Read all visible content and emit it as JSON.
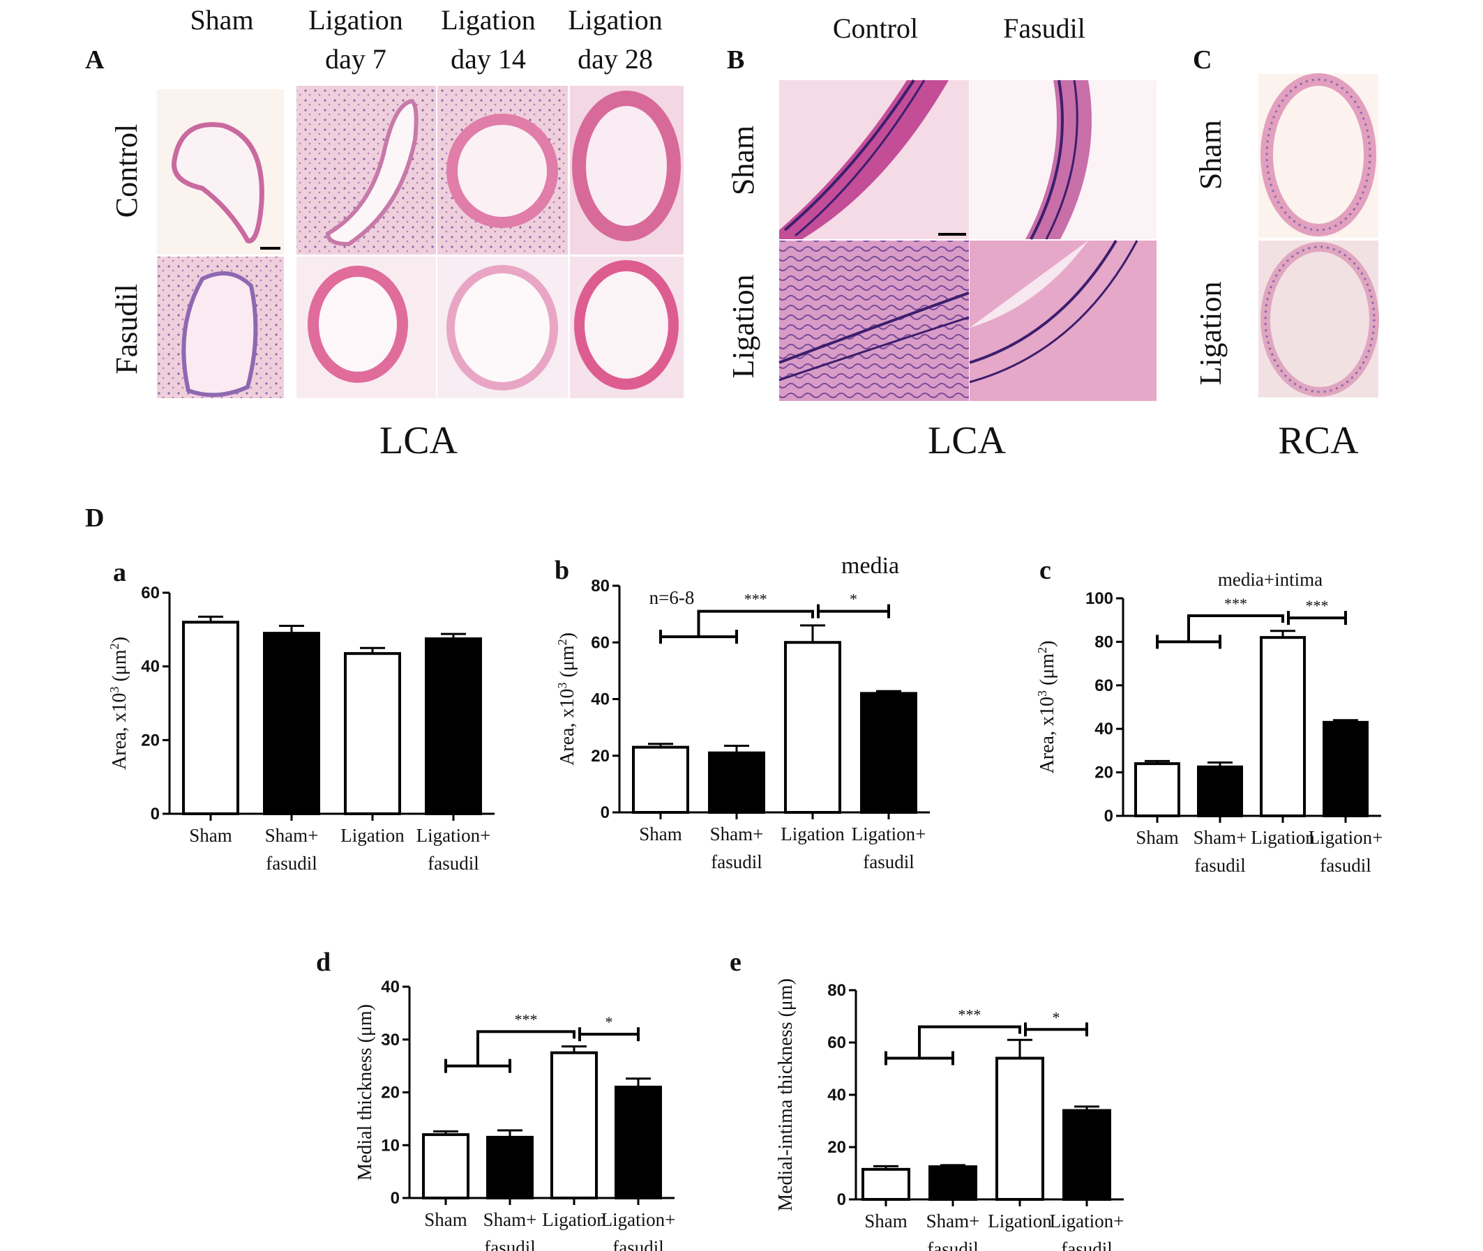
{
  "panels": {
    "A": {
      "letter": "A",
      "columns": [
        {
          "line1": "Sham",
          "line2": ""
        },
        {
          "line1": "Ligation",
          "line2": "day 7"
        },
        {
          "line1": "Ligation",
          "line2": "day 14"
        },
        {
          "line1": "Ligation",
          "line2": "day 28"
        }
      ],
      "rows": [
        "Control",
        "Fasudil"
      ],
      "vessel": "LCA"
    },
    "B": {
      "letter": "B",
      "columns": [
        "Control",
        "Fasudil"
      ],
      "rows": [
        "Sham",
        "Ligation"
      ],
      "vessel": "LCA"
    },
    "C": {
      "letter": "C",
      "rows": [
        "Sham",
        "Ligation"
      ],
      "vessel": "RCA"
    },
    "D": {
      "letter": "D"
    }
  },
  "colors": {
    "stain_pink": "#f2c9d6",
    "tissue": "#d87aa8",
    "nuclei": "#7a5b9e",
    "bar_fill_light": "#ffffff",
    "bar_fill_dark": "#000000"
  },
  "chart_data": [
    {
      "id": "a",
      "type": "bar",
      "title": "",
      "categories": [
        [
          "Sham",
          ""
        ],
        [
          "Sham+",
          "fasudil"
        ],
        [
          "Ligation",
          ""
        ],
        [
          "Ligation+",
          "fasudil"
        ]
      ],
      "values": [
        52,
        49,
        43.5,
        47.5
      ],
      "errors": [
        1.5,
        2,
        1.5,
        1.3
      ],
      "fills": [
        "white",
        "black",
        "white",
        "black"
      ],
      "ylabel_main": "Area, x10",
      "ylabel_sup": "3",
      "ylabel_rest": " (μm",
      "ylabel_sup2": "2",
      "ylabel_end": ")",
      "ylim": [
        0,
        60
      ],
      "yticks": [
        0,
        20,
        40,
        60
      ],
      "note": "",
      "brackets": []
    },
    {
      "id": "b",
      "type": "bar",
      "title": "media",
      "categories": [
        [
          "Sham",
          ""
        ],
        [
          "Sham+",
          "fasudil"
        ],
        [
          "Ligation",
          ""
        ],
        [
          "Ligation+",
          "fasudil"
        ]
      ],
      "values": [
        23,
        21,
        60,
        42
      ],
      "errors": [
        1.2,
        2.5,
        6,
        0.8
      ],
      "fills": [
        "white",
        "black",
        "white",
        "black"
      ],
      "ylabel_main": "Area, x10",
      "ylabel_sup": "3",
      "ylabel_rest": " (μm",
      "ylabel_sup2": "2",
      "ylabel_end": ")",
      "ylim": [
        0,
        80
      ],
      "yticks": [
        0,
        20,
        40,
        60,
        80
      ],
      "note": "n=6-8",
      "brackets": [
        {
          "level": 62,
          "top": 71,
          "from": [
            0,
            1
          ],
          "to": 2,
          "stars": "***"
        },
        {
          "level": 71,
          "top": 71,
          "from": [
            2,
            2
          ],
          "to": 3,
          "stars": "*",
          "simple": true
        }
      ]
    },
    {
      "id": "c",
      "type": "bar",
      "title": "media+intima",
      "categories": [
        [
          "Sham",
          ""
        ],
        [
          "Sham+",
          "fasudil"
        ],
        [
          "Ligation",
          ""
        ],
        [
          "Ligation+",
          "fasudil"
        ]
      ],
      "values": [
        24,
        22.5,
        82,
        43
      ],
      "errors": [
        1.2,
        2,
        3,
        1
      ],
      "fills": [
        "white",
        "black",
        "white",
        "black"
      ],
      "ylabel_main": "Area, x10",
      "ylabel_sup": "3",
      "ylabel_rest": " (μm",
      "ylabel_sup2": "2",
      "ylabel_end": ")",
      "ylim": [
        0,
        100
      ],
      "yticks": [
        0,
        20,
        40,
        60,
        80,
        100
      ],
      "note": "",
      "brackets": [
        {
          "level": 80,
          "top": 92,
          "from": [
            0,
            1
          ],
          "to": 2,
          "stars": "***"
        },
        {
          "level": 91,
          "top": 91,
          "from": [
            2,
            2
          ],
          "to": 3,
          "stars": "***",
          "simple": true
        }
      ]
    },
    {
      "id": "d",
      "type": "bar",
      "title": "",
      "categories": [
        [
          "Sham",
          ""
        ],
        [
          "Sham+",
          "fasudil"
        ],
        [
          "Ligation",
          ""
        ],
        [
          "Ligation+",
          "fasudil"
        ]
      ],
      "values": [
        12,
        11.5,
        27.5,
        21
      ],
      "errors": [
        0.6,
        1.3,
        1.2,
        1.6
      ],
      "fills": [
        "white",
        "black",
        "white",
        "black"
      ],
      "ylabel_main": "Medial thickness (μm)",
      "ylabel_sup": "",
      "ylabel_rest": "",
      "ylabel_sup2": "",
      "ylabel_end": "",
      "ylim": [
        0,
        40
      ],
      "yticks": [
        0,
        10,
        20,
        30,
        40
      ],
      "note": "",
      "brackets": [
        {
          "level": 25,
          "top": 31.5,
          "from": [
            0,
            1
          ],
          "to": 2,
          "stars": "***"
        },
        {
          "level": 31,
          "top": 31,
          "from": [
            2,
            2
          ],
          "to": 3,
          "stars": "*",
          "simple": true
        }
      ]
    },
    {
      "id": "e",
      "type": "bar",
      "title": "",
      "categories": [
        [
          "Sham",
          ""
        ],
        [
          "Sham+",
          "fasudil"
        ],
        [
          "Ligation",
          ""
        ],
        [
          "Ligation+",
          "fasudil"
        ]
      ],
      "values": [
        11.5,
        12.5,
        54,
        34
      ],
      "errors": [
        1.2,
        0.6,
        7,
        1.5
      ],
      "fills": [
        "white",
        "black",
        "white",
        "black"
      ],
      "ylabel_main": "Medial-intima thickness (μm)",
      "ylabel_sup": "",
      "ylabel_rest": "",
      "ylabel_sup2": "",
      "ylabel_end": "",
      "ylim": [
        0,
        80
      ],
      "yticks": [
        0,
        20,
        40,
        60,
        80
      ],
      "note": "",
      "brackets": [
        {
          "level": 54,
          "top": 66,
          "from": [
            0,
            1
          ],
          "to": 2,
          "stars": "***"
        },
        {
          "level": 65,
          "top": 65,
          "from": [
            2,
            2
          ],
          "to": 3,
          "stars": "*",
          "simple": true
        }
      ]
    }
  ]
}
